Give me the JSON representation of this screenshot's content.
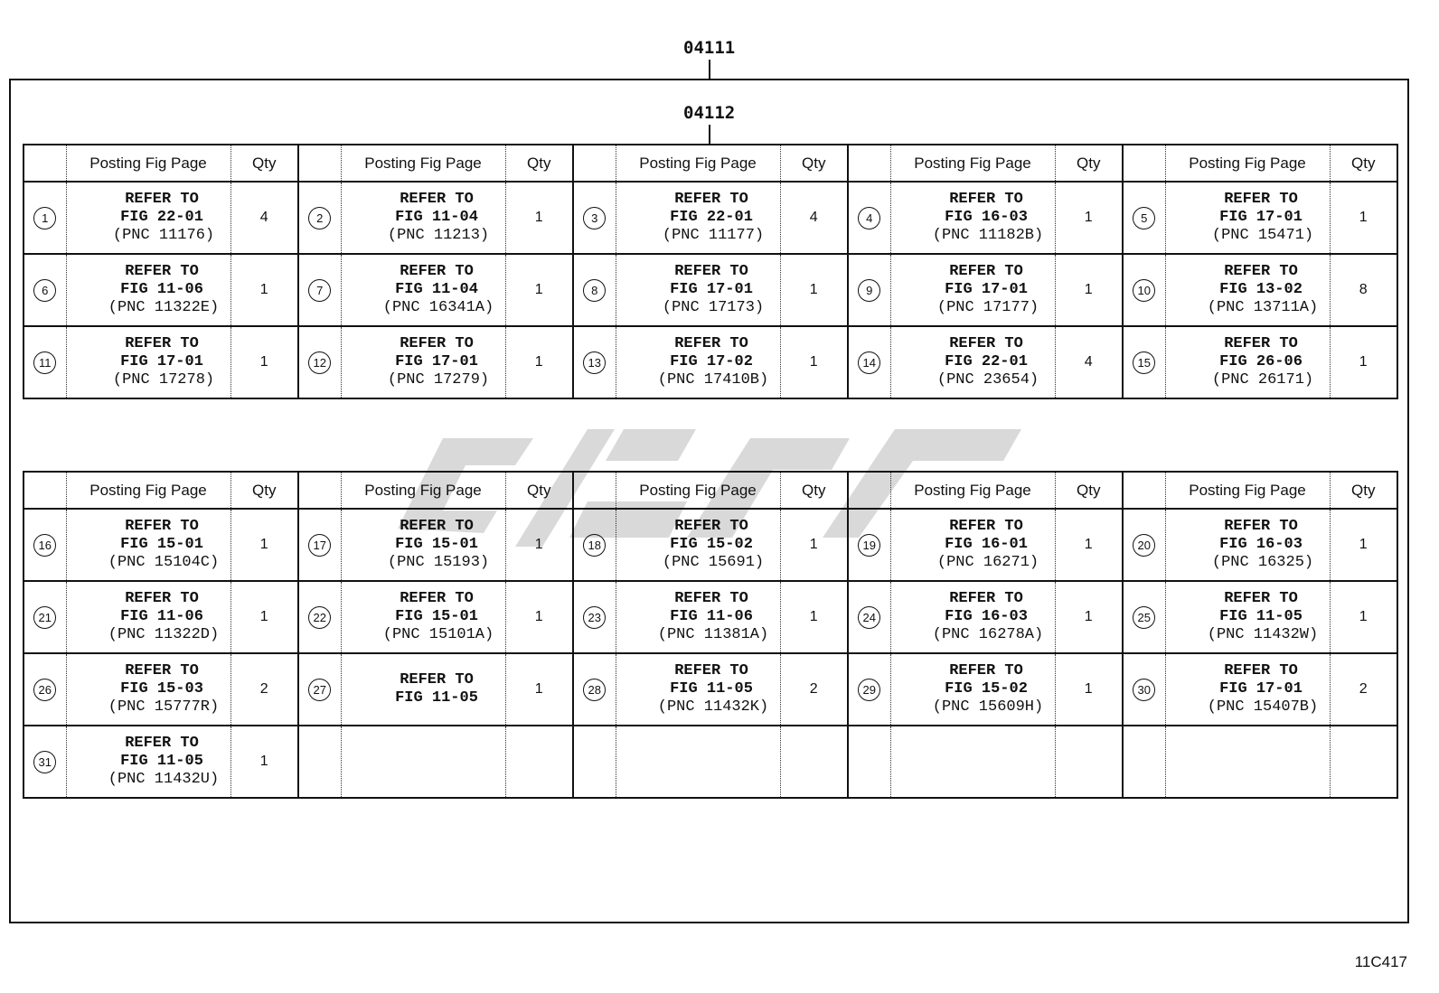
{
  "labels": {
    "outer": "04111",
    "inner": "04112",
    "figure_code": "11C417"
  },
  "headers": {
    "posting": "Posting Fig Page",
    "qty": "Qty"
  },
  "refer_label": "REFER TO",
  "table1": [
    {
      "no": "1",
      "fig": "FIG 22-01",
      "pnc": "(PNC 11176)",
      "qty": "4"
    },
    {
      "no": "2",
      "fig": "FIG 11-04",
      "pnc": "(PNC 11213)",
      "qty": "1"
    },
    {
      "no": "3",
      "fig": "FIG 22-01",
      "pnc": "(PNC 11177)",
      "qty": "4"
    },
    {
      "no": "4",
      "fig": "FIG 16-03",
      "pnc": "(PNC 11182B)",
      "qty": "1"
    },
    {
      "no": "5",
      "fig": "FIG 17-01",
      "pnc": "(PNC 15471)",
      "qty": "1"
    },
    {
      "no": "6",
      "fig": "FIG 11-06",
      "pnc": "(PNC 11322E)",
      "qty": "1"
    },
    {
      "no": "7",
      "fig": "FIG 11-04",
      "pnc": "(PNC 16341A)",
      "qty": "1"
    },
    {
      "no": "8",
      "fig": "FIG 17-01",
      "pnc": "(PNC 17173)",
      "qty": "1"
    },
    {
      "no": "9",
      "fig": "FIG 17-01",
      "pnc": "(PNC 17177)",
      "qty": "1"
    },
    {
      "no": "10",
      "fig": "FIG 13-02",
      "pnc": "(PNC 13711A)",
      "qty": "8"
    },
    {
      "no": "11",
      "fig": "FIG 17-01",
      "pnc": "(PNC 17278)",
      "qty": "1"
    },
    {
      "no": "12",
      "fig": "FIG 17-01",
      "pnc": "(PNC 17279)",
      "qty": "1"
    },
    {
      "no": "13",
      "fig": "FIG 17-02",
      "pnc": "(PNC 17410B)",
      "qty": "1"
    },
    {
      "no": "14",
      "fig": "FIG 22-01",
      "pnc": "(PNC 23654)",
      "qty": "4"
    },
    {
      "no": "15",
      "fig": "FIG 26-06",
      "pnc": "(PNC 26171)",
      "qty": "1"
    }
  ],
  "table2": [
    {
      "no": "16",
      "fig": "FIG 15-01",
      "pnc": "(PNC 15104C)",
      "qty": "1"
    },
    {
      "no": "17",
      "fig": "FIG 15-01",
      "pnc": "(PNC 15193)",
      "qty": "1"
    },
    {
      "no": "18",
      "fig": "FIG 15-02",
      "pnc": "(PNC 15691)",
      "qty": "1"
    },
    {
      "no": "19",
      "fig": "FIG 16-01",
      "pnc": "(PNC 16271)",
      "qty": "1"
    },
    {
      "no": "20",
      "fig": "FIG 16-03",
      "pnc": "(PNC 16325)",
      "qty": "1"
    },
    {
      "no": "21",
      "fig": "FIG 11-06",
      "pnc": "(PNC 11322D)",
      "qty": "1"
    },
    {
      "no": "22",
      "fig": "FIG 15-01",
      "pnc": "(PNC 15101A)",
      "qty": "1"
    },
    {
      "no": "23",
      "fig": "FIG 11-06",
      "pnc": "(PNC 11381A)",
      "qty": "1"
    },
    {
      "no": "24",
      "fig": "FIG 16-03",
      "pnc": "(PNC 16278A)",
      "qty": "1"
    },
    {
      "no": "25",
      "fig": "FIG 11-05",
      "pnc": "(PNC 11432W)",
      "qty": "1"
    },
    {
      "no": "26",
      "fig": "FIG 15-03",
      "pnc": "(PNC 15777R)",
      "qty": "2"
    },
    {
      "no": "27",
      "fig": "FIG 11-05",
      "pnc": "",
      "qty": "1"
    },
    {
      "no": "28",
      "fig": "FIG 11-05",
      "pnc": "(PNC 11432K)",
      "qty": "2"
    },
    {
      "no": "29",
      "fig": "FIG 15-02",
      "pnc": "(PNC 15609H)",
      "qty": "1"
    },
    {
      "no": "30",
      "fig": "FIG 17-01",
      "pnc": "(PNC 15407B)",
      "qty": "2"
    },
    {
      "no": "31",
      "fig": "FIG 11-05",
      "pnc": "(PNC 11432U)",
      "qty": "1"
    }
  ],
  "colors": {
    "line": "#111111",
    "watermark": "#d9d9d9"
  }
}
